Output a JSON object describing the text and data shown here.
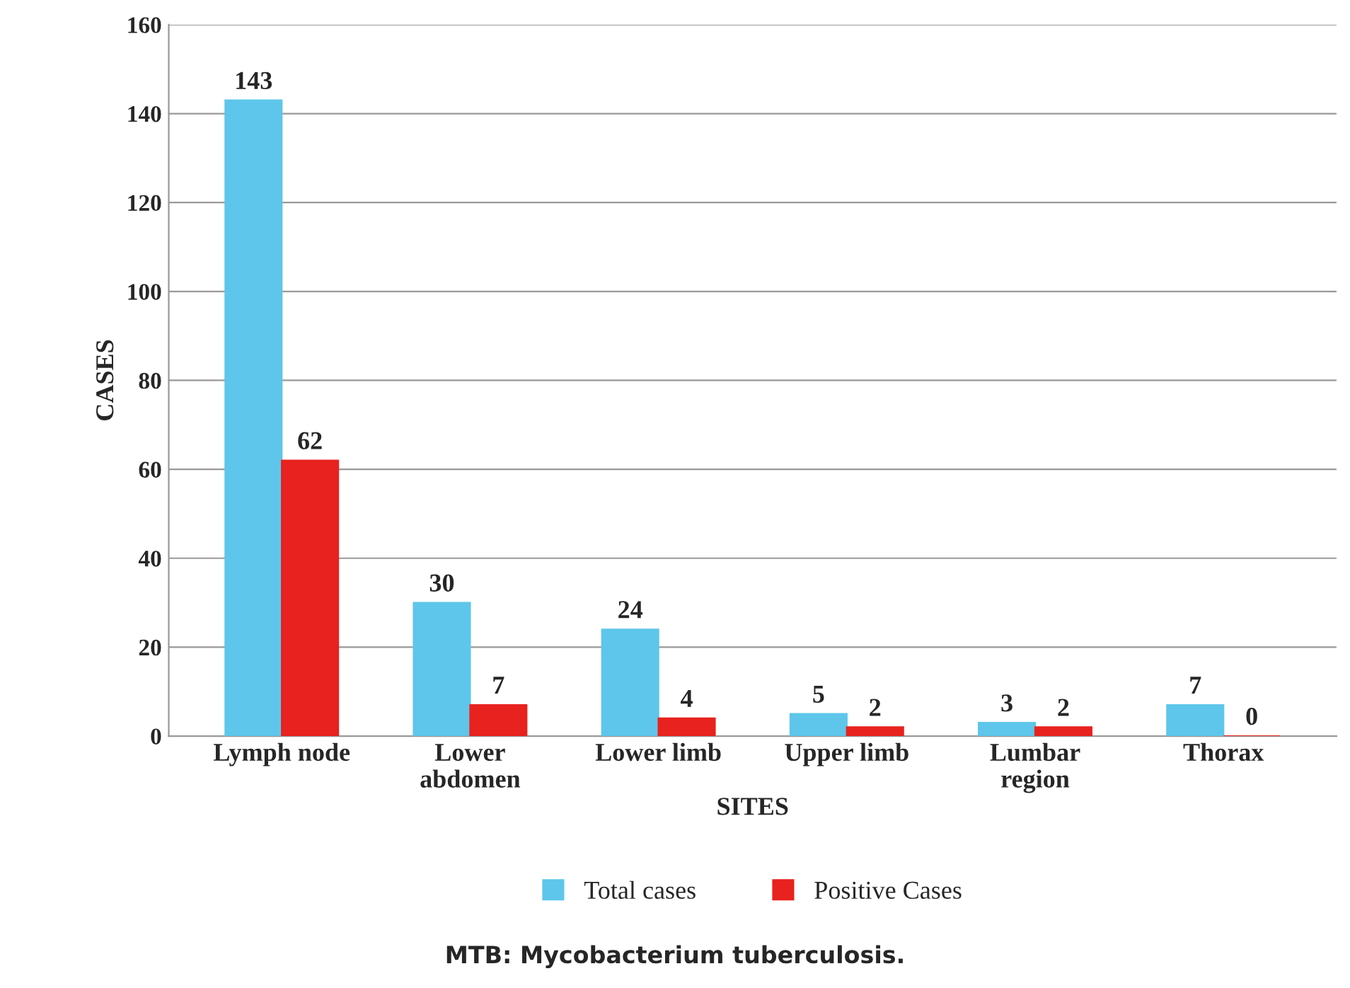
{
  "chart_data": {
    "type": "bar",
    "xlabel": "SITES",
    "ylabel": "CASES",
    "categories": [
      "Lymph node",
      "Lower\nabdomen",
      "Lower limb",
      "Upper limb",
      "Lumbar\nregion",
      "Thorax"
    ],
    "series": [
      {
        "name": "Total cases",
        "color": "#5ec6ea",
        "values": [
          143,
          30,
          24,
          5,
          3,
          7
        ]
      },
      {
        "name": "Positive Cases",
        "color": "#e8221e",
        "values": [
          62,
          7,
          4,
          2,
          2,
          0
        ]
      }
    ],
    "ylim": [
      0,
      160
    ],
    "yticks": [
      0,
      20,
      40,
      60,
      80,
      100,
      120,
      140,
      160
    ],
    "grid": "y",
    "legend": "bottom",
    "data_labels": true,
    "annotations": [
      "MTB: Mycobacterium tuberculosis."
    ]
  }
}
